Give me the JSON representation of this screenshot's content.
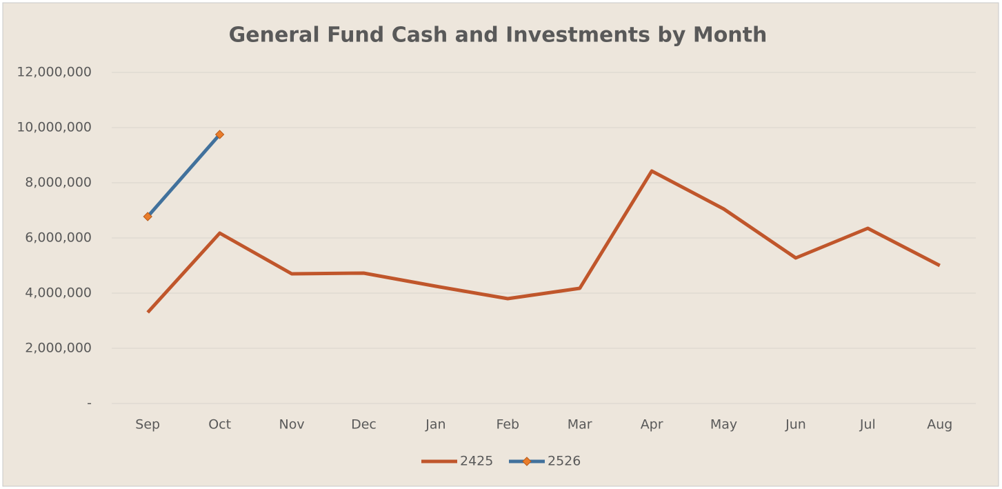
{
  "chart_data": {
    "type": "line",
    "title": "General Fund Cash and Investments by Month",
    "categories": [
      "Sep",
      "Oct",
      "Nov",
      "Dec",
      "Jan",
      "Feb",
      "Mar",
      "Apr",
      "May",
      "Jun",
      "Jul",
      "Aug"
    ],
    "series": [
      {
        "name": "2425",
        "color": "#c0562b",
        "values": [
          3300000,
          6175000,
          4700000,
          4725000,
          4250000,
          3800000,
          4175000,
          8425000,
          7050000,
          5275000,
          6350000,
          5000000
        ]
      },
      {
        "name": "2526",
        "color": "#41719c",
        "marker_color": "#e97d2b",
        "values": [
          6775000,
          9750000,
          null,
          null,
          null,
          null,
          null,
          null,
          null,
          null,
          null,
          null
        ]
      }
    ],
    "ylim": [
      0,
      12000000
    ],
    "yticks": [
      {
        "value": 0,
        "label": "-"
      },
      {
        "value": 2000000,
        "label": "2,000,000"
      },
      {
        "value": 4000000,
        "label": "4,000,000"
      },
      {
        "value": 6000000,
        "label": "6,000,000"
      },
      {
        "value": 8000000,
        "label": "8,000,000"
      },
      {
        "value": 10000000,
        "label": "10,000,000"
      },
      {
        "value": 12000000,
        "label": "12,000,000"
      }
    ],
    "grid": true,
    "legend": "bottom"
  }
}
